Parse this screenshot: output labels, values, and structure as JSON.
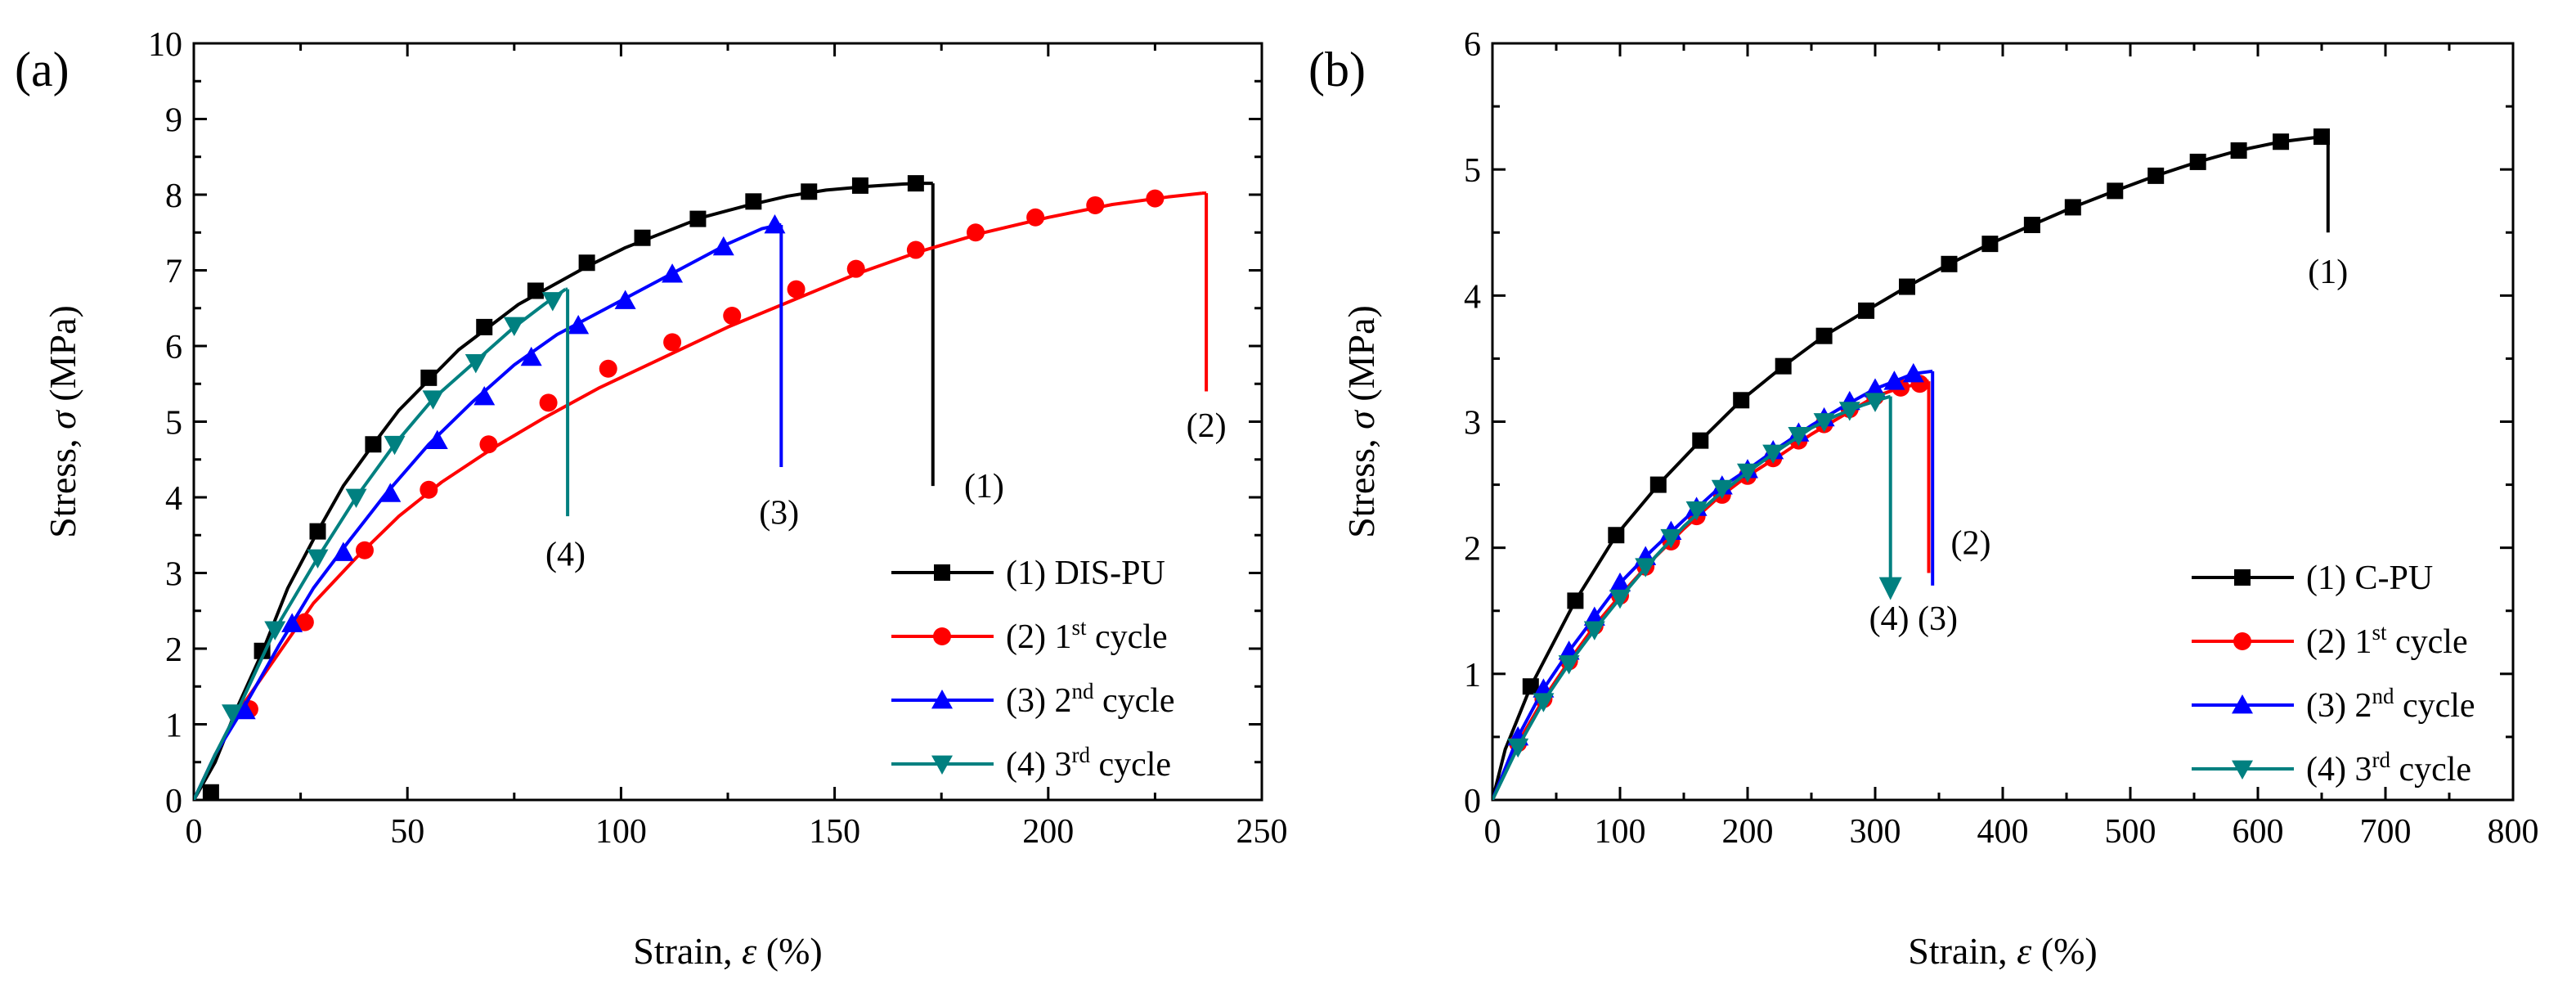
{
  "chart_data": [
    {
      "panel": "(a)",
      "type": "line",
      "xlabel_main": "Strain, ",
      "xlabel_symbol": "ε",
      "xlabel_unit": " (%)",
      "ylabel_main": "Stress, ",
      "ylabel_symbol": "σ",
      "ylabel_unit": " (MPa)",
      "xlim": [
        0,
        250
      ],
      "ylim": [
        0,
        10
      ],
      "xticks": [
        0,
        50,
        100,
        150,
        200,
        250
      ],
      "yticks": [
        0,
        1,
        2,
        3,
        4,
        5,
        6,
        7,
        8,
        9,
        10
      ],
      "series": [
        {
          "id": "1",
          "name": "(1) DIS-PU",
          "sup": "",
          "name_suffix": "",
          "color": "#000000",
          "marker": "square",
          "x": [
            0,
            5,
            10,
            16,
            22,
            29,
            35,
            42,
            48,
            55,
            62,
            69,
            76,
            84,
            92,
            101,
            110,
            119,
            129,
            139,
            148,
            158,
            166,
            170,
            173
          ],
          "y": [
            0,
            0.5,
            1.2,
            1.95,
            2.8,
            3.55,
            4.15,
            4.7,
            5.15,
            5.55,
            5.95,
            6.25,
            6.55,
            6.8,
            7.05,
            7.3,
            7.5,
            7.7,
            7.85,
            7.98,
            8.06,
            8.11,
            8.14,
            8.15,
            8.15
          ],
          "mx": [
            4,
            16,
            29,
            42,
            55,
            68,
            80,
            92,
            105,
            118,
            131,
            144,
            156,
            169
          ],
          "my": [
            0.1,
            1.97,
            3.55,
            4.7,
            5.58,
            6.25,
            6.73,
            7.1,
            7.43,
            7.68,
            7.91,
            8.04,
            8.12,
            8.15
          ],
          "drop_x": 173,
          "drop_to": 4.15
        },
        {
          "id": "2",
          "name": "(2) 1",
          "sup": "st",
          "name_suffix": " cycle",
          "color": "#ff0000",
          "marker": "circle",
          "x": [
            0,
            5,
            12,
            20,
            28,
            38,
            48,
            58,
            70,
            82,
            95,
            110,
            125,
            140,
            155,
            170,
            185,
            200,
            215,
            228,
            236
          ],
          "y": [
            0,
            0.6,
            1.3,
            1.95,
            2.6,
            3.2,
            3.75,
            4.2,
            4.65,
            5.05,
            5.45,
            5.85,
            6.25,
            6.6,
            6.95,
            7.25,
            7.5,
            7.7,
            7.87,
            7.97,
            8.02
          ],
          "mx": [
            13,
            26,
            40,
            55,
            69,
            83,
            97,
            112,
            126,
            141,
            155,
            169,
            183,
            197,
            211,
            225
          ],
          "my": [
            1.2,
            2.35,
            3.3,
            4.1,
            4.7,
            5.25,
            5.7,
            6.05,
            6.4,
            6.75,
            7.02,
            7.27,
            7.5,
            7.7,
            7.86,
            7.95
          ],
          "drop_x": 237,
          "drop_to": 5.4
        },
        {
          "id": "3",
          "name": "(3) 2",
          "sup": "nd",
          "name_suffix": " cycle",
          "color": "#0000ff",
          "marker": "triangle-up",
          "x": [
            0,
            5,
            12,
            20,
            28,
            36,
            45,
            55,
            65,
            75,
            85,
            95,
            105,
            115,
            125,
            133,
            137
          ],
          "y": [
            0,
            0.6,
            1.25,
            2.05,
            2.8,
            3.4,
            4.05,
            4.7,
            5.25,
            5.75,
            6.15,
            6.45,
            6.75,
            7.05,
            7.35,
            7.55,
            7.6
          ],
          "mx": [
            12,
            23,
            35,
            46,
            57,
            68,
            79,
            90,
            101,
            112,
            124,
            136
          ],
          "my": [
            1.18,
            2.33,
            3.27,
            4.05,
            4.75,
            5.33,
            5.85,
            6.27,
            6.6,
            6.95,
            7.31,
            7.6
          ],
          "drop_x": 137.5,
          "drop_to": 4.4
        },
        {
          "id": "4",
          "name": "(4) 3",
          "sup": "rd",
          "name_suffix": " cycle",
          "color": "#008080",
          "marker": "triangle-down",
          "x": [
            0,
            5,
            10,
            19,
            29,
            38,
            47,
            56,
            66,
            75,
            82,
            87
          ],
          "y": [
            0,
            0.6,
            1.15,
            2.25,
            3.2,
            4.0,
            4.7,
            5.3,
            5.8,
            6.25,
            6.55,
            6.75
          ],
          "mx": [
            9,
            19,
            29,
            38,
            47,
            56,
            66,
            75,
            84
          ],
          "my": [
            1.15,
            2.25,
            3.2,
            4.0,
            4.7,
            5.3,
            5.78,
            6.27,
            6.6
          ],
          "drop_x": 87.5,
          "drop_to": 3.75
        }
      ],
      "annotations": [
        {
          "text": "(1)",
          "x": 185,
          "y": 4.0
        },
        {
          "text": "(2)",
          "x": 237,
          "y": 4.8
        },
        {
          "text": "(3)",
          "x": 137,
          "y": 3.65
        },
        {
          "text": "(4)",
          "x": 87,
          "y": 3.1
        }
      ]
    },
    {
      "panel": "(b)",
      "type": "line",
      "xlabel_main": "Strain, ",
      "xlabel_symbol": "ε",
      "xlabel_unit": " (%)",
      "ylabel_main": "Stress, ",
      "ylabel_symbol": "σ",
      "ylabel_unit": " (MPa)",
      "xlim": [
        0,
        800
      ],
      "ylim": [
        0,
        6
      ],
      "xticks": [
        0,
        100,
        200,
        300,
        400,
        500,
        600,
        700,
        800
      ],
      "yticks": [
        0,
        1,
        2,
        3,
        4,
        5,
        6
      ],
      "series": [
        {
          "id": "1",
          "name": "(1) C-PU",
          "sup": "",
          "name_suffix": "",
          "color": "#000000",
          "marker": "square",
          "x": [
            0,
            10,
            30,
            65,
            97,
            130,
            163,
            195,
            228,
            260,
            293,
            325,
            358,
            390,
            423,
            455,
            488,
            520,
            553,
            585,
            618,
            650
          ],
          "y": [
            0,
            0.4,
            0.9,
            1.58,
            2.1,
            2.5,
            2.85,
            3.17,
            3.44,
            3.68,
            3.88,
            4.07,
            4.25,
            4.41,
            4.56,
            4.7,
            4.83,
            4.95,
            5.06,
            5.15,
            5.22,
            5.26
          ],
          "mx": [
            30,
            65,
            97,
            130,
            163,
            195,
            228,
            260,
            293,
            325,
            358,
            390,
            423,
            455,
            488,
            520,
            553,
            585,
            618,
            650
          ],
          "my": [
            0.9,
            1.58,
            2.1,
            2.5,
            2.85,
            3.17,
            3.44,
            3.68,
            3.88,
            4.07,
            4.25,
            4.41,
            4.56,
            4.7,
            4.83,
            4.95,
            5.06,
            5.15,
            5.22,
            5.26
          ],
          "drop_x": 655,
          "drop_to": 4.5
        },
        {
          "id": "2",
          "name": "(2) 1",
          "sup": "st",
          "name_suffix": " cycle",
          "color": "#ff0000",
          "marker": "circle",
          "x": [
            0,
            20,
            40,
            60,
            80,
            100,
            125,
            150,
            175,
            200,
            225,
            250,
            275,
            300,
            320,
            335,
            340
          ],
          "y": [
            0,
            0.45,
            0.8,
            1.1,
            1.38,
            1.62,
            1.9,
            2.15,
            2.38,
            2.57,
            2.73,
            2.9,
            3.05,
            3.2,
            3.27,
            3.3,
            3.32
          ],
          "mx": [
            20,
            40,
            60,
            80,
            100,
            120,
            140,
            160,
            180,
            200,
            220,
            240,
            260,
            280,
            300,
            320,
            335
          ],
          "my": [
            0.45,
            0.8,
            1.1,
            1.38,
            1.62,
            1.85,
            2.05,
            2.25,
            2.42,
            2.57,
            2.71,
            2.85,
            2.98,
            3.1,
            3.2,
            3.27,
            3.3
          ],
          "drop_x": 342,
          "drop_to": 1.8
        },
        {
          "id": "3",
          "name": "(3) 2",
          "sup": "nd",
          "name_suffix": " cycle",
          "color": "#0000ff",
          "marker": "triangle-up",
          "x": [
            0,
            20,
            40,
            60,
            80,
            100,
            125,
            150,
            175,
            200,
            225,
            250,
            275,
            300,
            315,
            330,
            345
          ],
          "y": [
            0,
            0.5,
            0.88,
            1.18,
            1.45,
            1.72,
            1.98,
            2.22,
            2.45,
            2.62,
            2.8,
            2.97,
            3.12,
            3.26,
            3.32,
            3.38,
            3.4
          ],
          "mx": [
            20,
            40,
            60,
            80,
            100,
            120,
            140,
            160,
            180,
            200,
            220,
            240,
            260,
            280,
            300,
            315,
            330
          ],
          "my": [
            0.5,
            0.88,
            1.18,
            1.45,
            1.72,
            1.93,
            2.13,
            2.32,
            2.49,
            2.62,
            2.77,
            2.91,
            3.03,
            3.16,
            3.26,
            3.32,
            3.38
          ],
          "drop_x": 345,
          "drop_to": 1.7
        },
        {
          "id": "4",
          "name": "(4) 3",
          "sup": "rd",
          "name_suffix": " cycle",
          "color": "#008080",
          "marker": "triangle-down",
          "x": [
            0,
            20,
            40,
            60,
            80,
            100,
            125,
            150,
            175,
            200,
            225,
            250,
            270,
            290,
            305,
            312
          ],
          "y": [
            0,
            0.42,
            0.78,
            1.08,
            1.35,
            1.6,
            1.9,
            2.17,
            2.4,
            2.6,
            2.78,
            2.95,
            3.05,
            3.13,
            3.18,
            3.2
          ],
          "mx": [
            20,
            40,
            60,
            80,
            100,
            120,
            140,
            160,
            180,
            200,
            220,
            240,
            260,
            280,
            300
          ],
          "my": [
            0.42,
            0.78,
            1.08,
            1.35,
            1.6,
            1.85,
            2.08,
            2.3,
            2.47,
            2.6,
            2.75,
            2.89,
            3.0,
            3.09,
            3.16
          ],
          "drop_x": 312,
          "drop_to": 1.65,
          "drop_arrow": true
        }
      ],
      "annotations": [
        {
          "text": "(1)",
          "x": 655,
          "y": 4.1
        },
        {
          "text": "(2)",
          "x": 375,
          "y": 1.95
        },
        {
          "text": "(4) (3)",
          "x": 330,
          "y": 1.35
        }
      ]
    }
  ]
}
